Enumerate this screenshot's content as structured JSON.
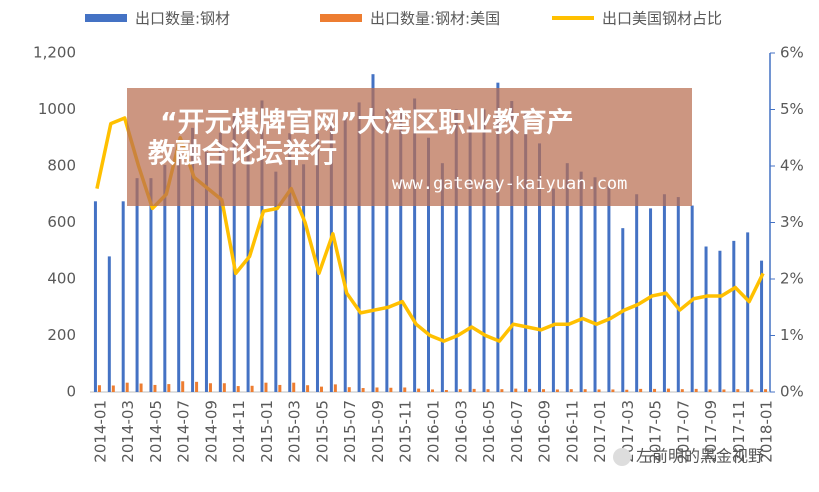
{
  "chart_data": {
    "type": "bar-line",
    "categories": [
      "2014-01",
      null,
      "2014-03",
      null,
      "2014-05",
      null,
      "2014-07",
      null,
      "2014-09",
      null,
      "2014-11",
      null,
      "2015-01",
      null,
      "2015-03",
      null,
      "2015-05",
      null,
      "2015-07",
      null,
      "2015-09",
      null,
      "2015-11",
      null,
      "2016-01",
      null,
      "2016-03",
      null,
      "2016-05",
      null,
      "2016-07",
      null,
      "2016-09",
      null,
      "2016-11",
      null,
      "2017-01",
      null,
      "2017-03",
      null,
      "2017-05",
      null,
      "2017-07",
      null,
      "2017-09",
      null,
      "2017-11",
      null,
      "2018-01"
    ],
    "series": [
      {
        "name": "出口数量:钢材",
        "color": "#4472c4",
        "type": "bar",
        "values": [
          675,
          480,
          675,
          757,
          757,
          804,
          853,
          935,
          850,
          918,
          985,
          926,
          1032,
          780,
          916,
          806,
          917,
          961,
          973,
          1025,
          1125,
          1000,
          987,
          1039,
          900,
          810,
          1000,
          940,
          1000,
          1095,
          1030,
          990,
          880,
          720,
          810,
          780,
          760,
          730,
          580,
          700,
          650,
          700,
          690,
          660,
          515,
          500,
          535,
          565,
          465
        ]
      },
      {
        "name": "出口数量:钢材:美国",
        "color": "#ed7d31",
        "type": "bar",
        "values": [
          24,
          23,
          33,
          30,
          25,
          28,
          38,
          36,
          31,
          31,
          21,
          22,
          33,
          25,
          33,
          24,
          19,
          27,
          17,
          14,
          16,
          15,
          16,
          12,
          9,
          7,
          10,
          11,
          10,
          10,
          12,
          11,
          10,
          9,
          10,
          10,
          9,
          9,
          8,
          11,
          11,
          12,
          10,
          11,
          9,
          9,
          10,
          9,
          10
        ]
      },
      {
        "name": "出口美国钢材占比",
        "color": "#ffc000",
        "type": "line",
        "axis": "y2",
        "values": [
          3.6,
          4.75,
          4.85,
          4.0,
          3.25,
          3.5,
          4.5,
          3.8,
          3.6,
          3.4,
          2.1,
          2.4,
          3.2,
          3.25,
          3.6,
          3.0,
          2.1,
          2.8,
          1.75,
          1.4,
          1.45,
          1.5,
          1.6,
          1.2,
          1.0,
          0.9,
          1.0,
          1.15,
          1.0,
          0.9,
          1.2,
          1.15,
          1.1,
          1.2,
          1.2,
          1.3,
          1.2,
          1.3,
          1.45,
          1.55,
          1.7,
          1.75,
          1.45,
          1.65,
          1.7,
          1.7,
          1.85,
          1.6,
          2.1
        ]
      }
    ],
    "ylim": [
      0,
      1200
    ],
    "yticks": [
      0,
      200,
      400,
      600,
      800,
      1000,
      {
        "value": 1200,
        "label": "1,200"
      }
    ],
    "y2lim": [
      0,
      6
    ],
    "y2ticks": [
      {
        "value": 0,
        "label": "0%"
      },
      {
        "value": 1,
        "label": "1%"
      },
      {
        "value": 2,
        "label": "2%"
      },
      {
        "value": 3,
        "label": "3%"
      },
      {
        "value": 4,
        "label": "4%"
      },
      {
        "value": 5,
        "label": "5%"
      },
      {
        "value": 6,
        "label": "6%"
      }
    ],
    "annotations": [
      "“开元棋牌官网”大湾区职业教育产",
      "教融合论坛举行",
      "www.gateway-kaiyuan.com",
      "左前明的黑金视野"
    ]
  }
}
